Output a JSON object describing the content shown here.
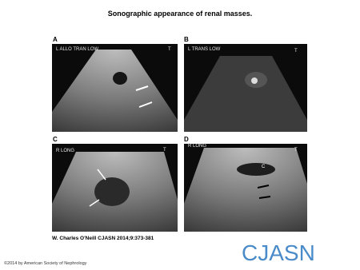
{
  "header": {
    "title": "Sonographic appearance of renal masses."
  },
  "panels": [
    {
      "label": "A",
      "caption": "L ALLO TRAN LOW",
      "marker": "T"
    },
    {
      "label": "B",
      "caption": "L TRANS LOW",
      "marker": "T"
    },
    {
      "label": "C",
      "caption": "R LONG",
      "marker": "T"
    },
    {
      "label": "D",
      "caption": "R LONG",
      "marker": "T",
      "annotation": "C"
    }
  ],
  "citation": "W. Charles O'Neill CJASN 2014;9:373-381",
  "logo": "CJASN",
  "copyright": "©2014 by American Society of Nephrology"
}
